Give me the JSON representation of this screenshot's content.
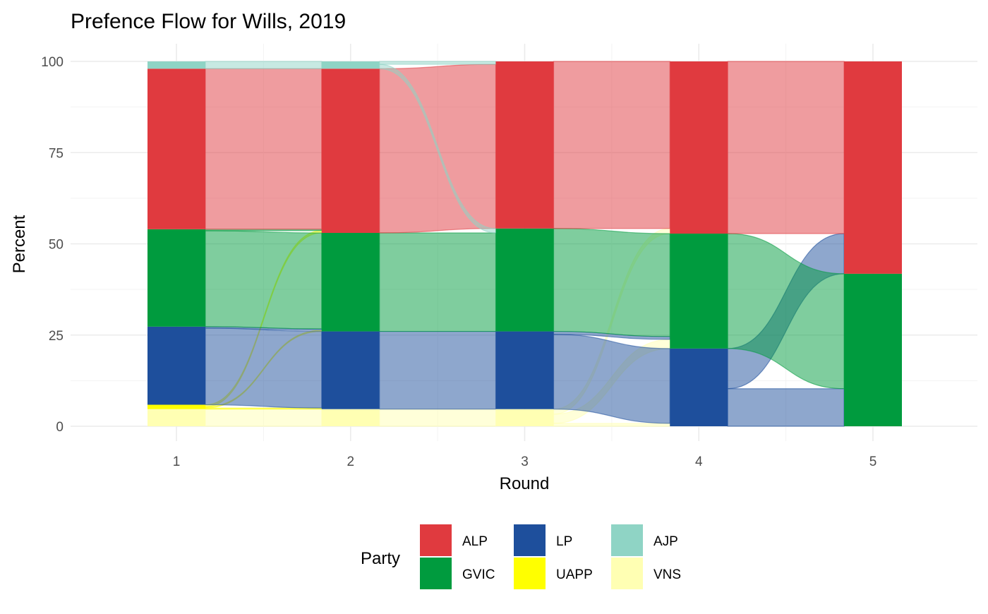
{
  "chart_data": {
    "type": "alluvial",
    "title": "Prefence Flow for Wills, 2019",
    "xlabel": "Round",
    "ylabel": "Percent",
    "x": [
      1,
      2,
      3,
      4,
      5
    ],
    "ylim": [
      0,
      100
    ],
    "yticks": [
      0,
      25,
      50,
      75,
      100
    ],
    "grid": true,
    "legend": {
      "title": "Party",
      "position": "bottom",
      "items": [
        {
          "name": "ALP",
          "color": "#E03A3F"
        },
        {
          "name": "GVIC",
          "color": "#009B3E"
        },
        {
          "name": "LP",
          "color": "#1E4F9C"
        },
        {
          "name": "UAPP",
          "color": "#FFFF00"
        },
        {
          "name": "AJP",
          "color": "#8FD4C5"
        },
        {
          "name": "VNS",
          "color": "#FFFFB3"
        }
      ]
    },
    "stack_order": [
      "VNS",
      "UAPP",
      "LP",
      "GVIC",
      "ALP",
      "AJP"
    ],
    "rounds": [
      {
        "round": 1,
        "values": {
          "VNS": 4.7,
          "UAPP": 1.2,
          "LP": 21.4,
          "GVIC": 26.7,
          "ALP": 44.0,
          "AJP": 2.0
        }
      },
      {
        "round": 2,
        "values": {
          "VNS": 4.7,
          "UAPP": 0,
          "LP": 21.3,
          "GVIC": 27.0,
          "ALP": 45.0,
          "AJP": 2.0
        }
      },
      {
        "round": 3,
        "values": {
          "VNS": 4.7,
          "UAPP": 0,
          "LP": 21.3,
          "GVIC": 28.2,
          "ALP": 45.8,
          "AJP": 0
        }
      },
      {
        "round": 4,
        "values": {
          "VNS": 0,
          "UAPP": 0,
          "LP": 21.3,
          "GVIC": 31.5,
          "ALP": 47.2,
          "AJP": 0
        }
      },
      {
        "round": 5,
        "values": {
          "VNS": 0,
          "UAPP": 0,
          "LP": 0,
          "GVIC": 41.8,
          "ALP": 58.2,
          "AJP": 0
        }
      }
    ],
    "flows": [
      {
        "from_round": 1,
        "from_party": "VNS",
        "to_party": "VNS",
        "value": 4.7
      },
      {
        "from_round": 1,
        "from_party": "UAPP",
        "to_party": "LP",
        "value": 0.3
      },
      {
        "from_round": 1,
        "from_party": "UAPP",
        "to_party": "GVIC",
        "value": 0.3
      },
      {
        "from_round": 1,
        "from_party": "UAPP",
        "to_party": "ALP",
        "value": 0.6
      },
      {
        "from_round": 1,
        "from_party": "LP",
        "to_party": "LP",
        "value": 21.0
      },
      {
        "from_round": 1,
        "from_party": "LP",
        "to_party": "GVIC",
        "value": 0.4
      },
      {
        "from_round": 1,
        "from_party": "GVIC",
        "to_party": "GVIC",
        "value": 26.3
      },
      {
        "from_round": 1,
        "from_party": "GVIC",
        "to_party": "ALP",
        "value": 0.4
      },
      {
        "from_round": 1,
        "from_party": "ALP",
        "to_party": "ALP",
        "value": 44.0
      },
      {
        "from_round": 1,
        "from_party": "AJP",
        "to_party": "AJP",
        "value": 2.0
      },
      {
        "from_round": 2,
        "from_party": "VNS",
        "to_party": "VNS",
        "value": 4.7
      },
      {
        "from_round": 2,
        "from_party": "LP",
        "to_party": "LP",
        "value": 21.3
      },
      {
        "from_round": 2,
        "from_party": "GVIC",
        "to_party": "GVIC",
        "value": 27.0
      },
      {
        "from_round": 2,
        "from_party": "ALP",
        "to_party": "ALP",
        "value": 45.0
      },
      {
        "from_round": 2,
        "from_party": "AJP",
        "to_party": "GVIC",
        "value": 1.2
      },
      {
        "from_round": 2,
        "from_party": "AJP",
        "to_party": "ALP",
        "value": 0.8
      },
      {
        "from_round": 3,
        "from_party": "VNS",
        "to_party": "LP",
        "value": 0.8
      },
      {
        "from_round": 3,
        "from_party": "VNS",
        "to_party": "GVIC",
        "value": 2.5
      },
      {
        "from_round": 3,
        "from_party": "VNS",
        "to_party": "ALP",
        "value": 1.4
      },
      {
        "from_round": 3,
        "from_party": "LP",
        "to_party": "LP",
        "value": 20.5
      },
      {
        "from_round": 3,
        "from_party": "LP",
        "to_party": "GVIC",
        "value": 0.8
      },
      {
        "from_round": 3,
        "from_party": "GVIC",
        "to_party": "GVIC",
        "value": 28.2
      },
      {
        "from_round": 3,
        "from_party": "ALP",
        "to_party": "ALP",
        "value": 45.8
      },
      {
        "from_round": 4,
        "from_party": "LP",
        "to_party": "GVIC",
        "value": 10.3
      },
      {
        "from_round": 4,
        "from_party": "LP",
        "to_party": "ALP",
        "value": 11.0
      },
      {
        "from_round": 4,
        "from_party": "GVIC",
        "to_party": "GVIC",
        "value": 31.5
      },
      {
        "from_round": 4,
        "from_party": "ALP",
        "to_party": "ALP",
        "value": 47.2
      }
    ]
  }
}
